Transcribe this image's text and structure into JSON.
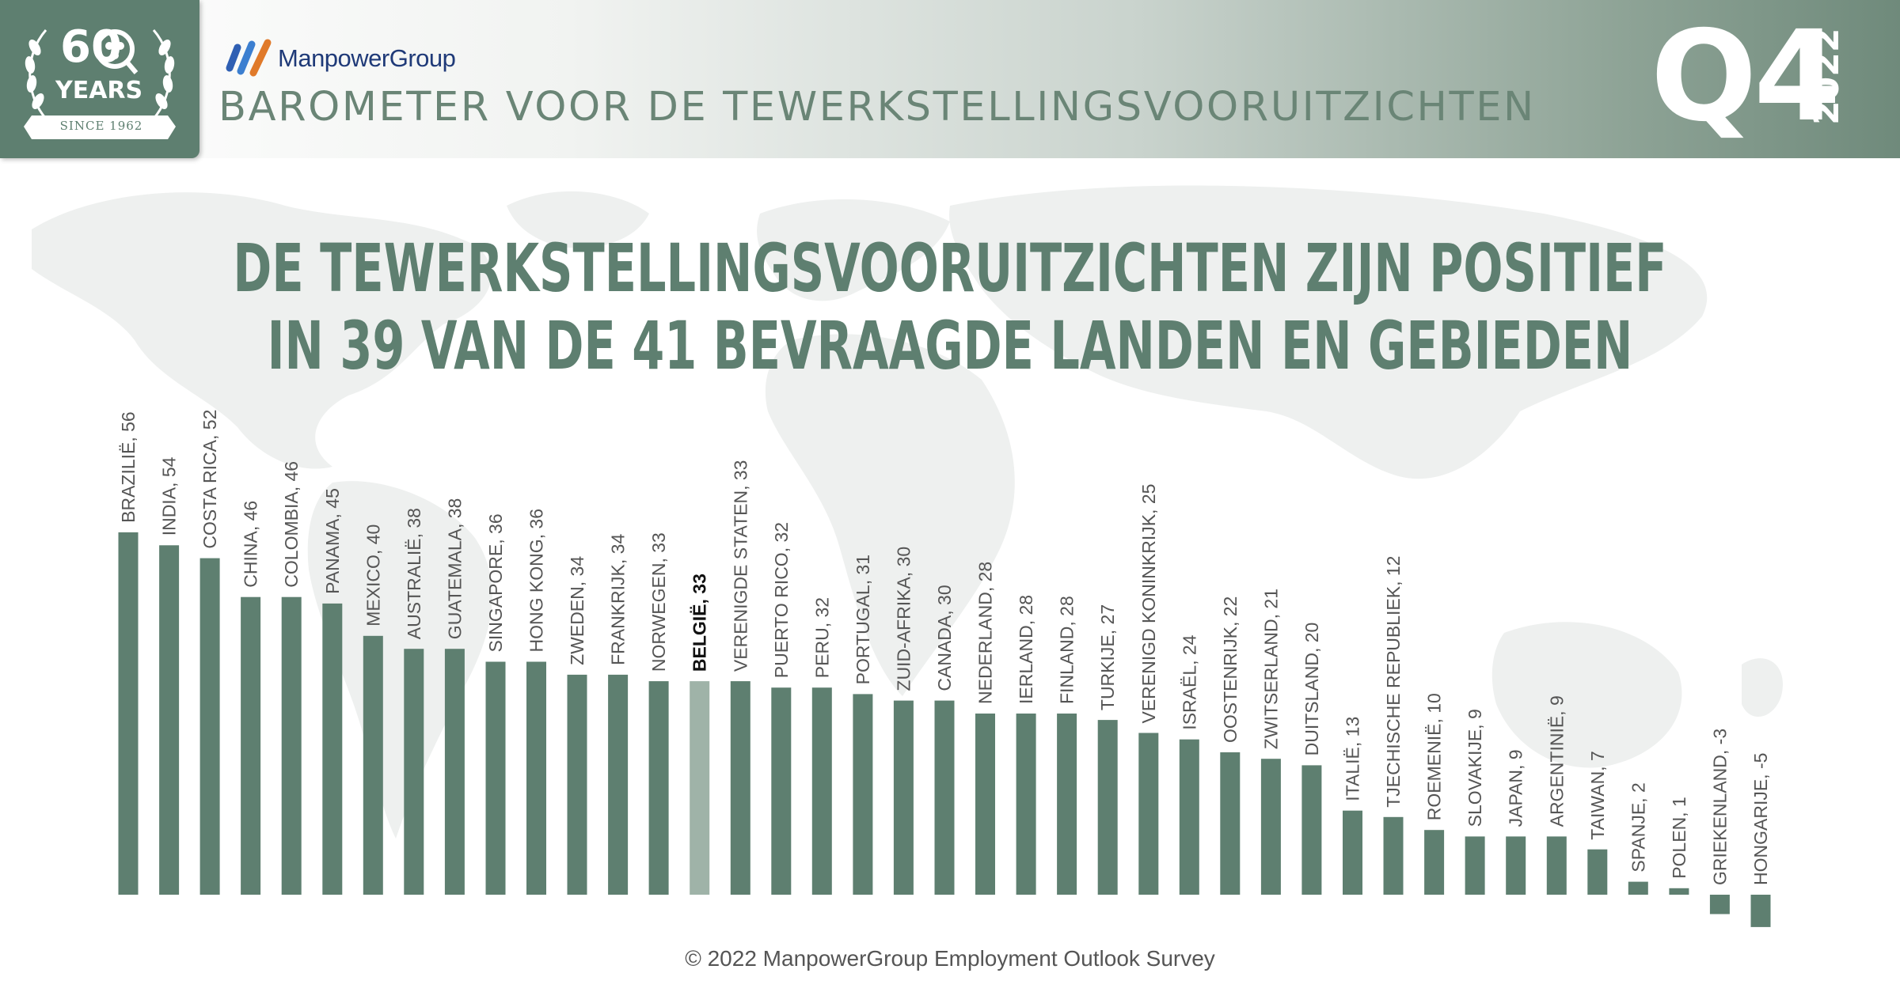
{
  "header": {
    "logo": {
      "number": "60",
      "label": "YEARS",
      "since": "SINCE 1962"
    },
    "brand": "ManpowerGroup",
    "subtitle": "BAROMETER VOOR DE TEWERKSTELLINGSVOORUITZICHTEN",
    "quarter": "Q4",
    "year": "2022"
  },
  "headline": {
    "line1": "DE TEWERKSTELLINGSVOORUITZICHTEN ZIJN POSITIEF",
    "line2": "IN 39 VAN DE 41 BEVRAAGDE LANDEN EN GEBIEDEN"
  },
  "footer": "© 2022 ManpowerGroup Employment Outlook Survey",
  "colors": {
    "bar": "#5e7f70",
    "highlight_bar": "#9fb3a8",
    "label": "#555555",
    "highlight_label": "#111111",
    "map": "#eef0ef"
  },
  "chart_data": {
    "type": "bar",
    "categories": [
      "BRAZILIË",
      "INDIA",
      "COSTA RICA",
      "CHINA",
      "COLOMBIA",
      "PANAMA",
      "MEXICO",
      "AUSTRALIË",
      "GUATEMALA",
      "SINGAPORE",
      "HONG KONG",
      "ZWEDEN",
      "FRANKRIJK",
      "NORWEGEN",
      "BELGIË",
      "VERENIGDE STATEN",
      "PUERTO RICO",
      "PERU",
      "PORTUGAL",
      "ZUID-AFRIKA",
      "CANADA",
      "NEDERLAND",
      "IERLAND",
      "FINLAND",
      "TURKIJE",
      "VERENIGD KONINKRIJK",
      "ISRAËL",
      "OOSTENRIJK",
      "ZWITSERLAND",
      "DUITSLAND",
      "ITALIË",
      "TJECHISCHE REPUBLIEK",
      "ROEMENIË",
      "SLOVAKIJE",
      "JAPAN",
      "ARGENTINIË",
      "TAIWAN",
      "SPANJE",
      "POLEN",
      "GRIEKENLAND",
      "HONGARIJE"
    ],
    "values": [
      56,
      54,
      52,
      46,
      46,
      45,
      40,
      38,
      38,
      36,
      36,
      34,
      34,
      33,
      33,
      33,
      32,
      32,
      31,
      30,
      30,
      28,
      28,
      28,
      27,
      25,
      24,
      22,
      21,
      20,
      13,
      12,
      10,
      9,
      9,
      9,
      7,
      2,
      1,
      -3,
      -5
    ],
    "labels": [
      "BRAZILIË, 56",
      "INDIA, 54",
      "COSTA RICA, 52",
      "CHINA, 46",
      "COLOMBIA, 46",
      "PANAMA, 45",
      "MEXICO, 40",
      "AUSTRALIË, 38",
      "GUATEMALA, 38",
      "SINGAPORE, 36",
      "HONG KONG, 36",
      "ZWEDEN, 34",
      "FRANKRIJK, 34",
      "NORWEGEN, 33",
      "BELGIË, 33",
      "VERENIGDE STATEN, 33",
      "PUERTO RICO, 32",
      "PERU, 32",
      "PORTUGAL, 31",
      "ZUID-AFRIKA, 30",
      "CANADA, 30",
      "NEDERLAND, 28",
      "IERLAND, 28",
      "FINLAND, 28",
      "TURKIJE, 27",
      "VERENIGD KONINKRIJK, 25",
      "ISRAËL, 24",
      "OOSTENRIJK, 22",
      "ZWITSERLAND, 21",
      "DUITSLAND, 20",
      "ITALIË, 13",
      "TJECHISCHE REPUBLIEK, 12",
      "ROEMENIË, 10",
      "SLOVAKIJE, 9",
      "JAPAN, 9",
      "ARGENTINIË, 9",
      "TAIWAN, 7",
      "SPANJE, 2",
      "POLEN, 1",
      "GRIEKENLAND, -3",
      "HONGARIJE, -5"
    ],
    "highlight": "BELGIË",
    "ylim": [
      -5,
      56
    ],
    "title": "",
    "xlabel": "",
    "ylabel": "",
    "grid": false,
    "legend": "none"
  }
}
